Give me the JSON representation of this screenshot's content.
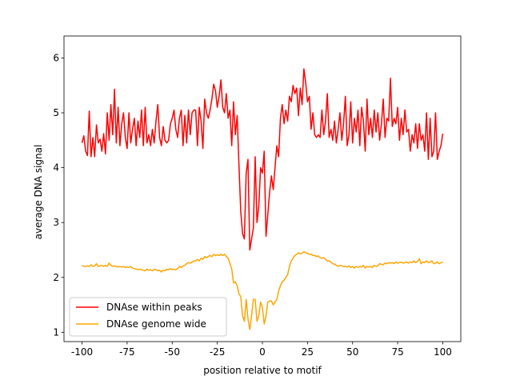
{
  "chart_data": {
    "type": "line",
    "xlabel": "position relative to motif",
    "ylabel": "average DNA signal",
    "x": [
      -100,
      -99,
      -98,
      -97,
      -96,
      -95,
      -94,
      -93,
      -92,
      -91,
      -90,
      -89,
      -88,
      -87,
      -86,
      -85,
      -84,
      -83,
      -82,
      -81,
      -80,
      -79,
      -78,
      -77,
      -76,
      -75,
      -74,
      -73,
      -72,
      -71,
      -70,
      -69,
      -68,
      -67,
      -66,
      -65,
      -64,
      -63,
      -62,
      -61,
      -60,
      -59,
      -58,
      -57,
      -56,
      -55,
      -54,
      -53,
      -52,
      -51,
      -50,
      -49,
      -48,
      -47,
      -46,
      -45,
      -44,
      -43,
      -42,
      -41,
      -40,
      -39,
      -38,
      -37,
      -36,
      -35,
      -34,
      -33,
      -32,
      -31,
      -30,
      -29,
      -28,
      -27,
      -26,
      -25,
      -24,
      -23,
      -22,
      -21,
      -20,
      -19,
      -18,
      -17,
      -16,
      -15,
      -14,
      -13,
      -12,
      -11,
      -10,
      -9,
      -8,
      -7,
      -6,
      -5,
      -4,
      -3,
      -2,
      -1,
      0,
      1,
      2,
      3,
      4,
      5,
      6,
      7,
      8,
      9,
      10,
      11,
      12,
      13,
      14,
      15,
      16,
      17,
      18,
      19,
      20,
      21,
      22,
      23,
      24,
      25,
      26,
      27,
      28,
      29,
      30,
      31,
      32,
      33,
      34,
      35,
      36,
      37,
      38,
      39,
      40,
      41,
      42,
      43,
      44,
      45,
      46,
      47,
      48,
      49,
      50,
      51,
      52,
      53,
      54,
      55,
      56,
      57,
      58,
      59,
      60,
      61,
      62,
      63,
      64,
      65,
      66,
      67,
      68,
      69,
      70,
      71,
      72,
      73,
      74,
      75,
      76,
      77,
      78,
      79,
      80,
      81,
      82,
      83,
      84,
      85,
      86,
      87,
      88,
      89,
      90,
      91,
      92,
      93,
      94,
      95,
      96,
      97,
      98,
      99,
      100
    ],
    "series": [
      {
        "name": "DNAse within peaks",
        "color": "#ff0000",
        "values": [
          4.45,
          4.58,
          4.3,
          4.22,
          5.03,
          4.2,
          4.55,
          4.2,
          4.78,
          4.45,
          4.52,
          4.3,
          4.62,
          4.25,
          5.0,
          4.5,
          5.15,
          4.6,
          5.43,
          4.45,
          5.1,
          4.4,
          4.8,
          5.0,
          4.55,
          4.35,
          5.0,
          4.45,
          4.7,
          4.9,
          4.4,
          4.85,
          4.55,
          5.05,
          4.4,
          5.1,
          4.45,
          4.6,
          4.4,
          4.7,
          4.45,
          4.85,
          5.15,
          4.55,
          4.4,
          4.75,
          4.5,
          4.45,
          4.5,
          4.8,
          4.9,
          5.05,
          4.7,
          4.55,
          4.9,
          5.05,
          4.4,
          4.95,
          4.45,
          5.05,
          4.6,
          5.0,
          5.05,
          5.05,
          4.4,
          5.1,
          4.85,
          4.35,
          5.25,
          5.0,
          4.9,
          5.05,
          5.25,
          5.52,
          5.4,
          5.1,
          5.3,
          5.6,
          5.1,
          5.0,
          5.35,
          4.9,
          5.05,
          4.4,
          5.2,
          4.6,
          4.95,
          4.05,
          3.2,
          2.8,
          2.7,
          3.9,
          4.15,
          2.5,
          2.7,
          2.9,
          4.2,
          3.0,
          3.3,
          4.0,
          3.9,
          4.3,
          2.75,
          3.15,
          3.55,
          3.85,
          3.6,
          4.0,
          4.4,
          4.2,
          4.9,
          5.15,
          4.8,
          5.05,
          4.85,
          5.3,
          5.2,
          5.5,
          5.35,
          5.45,
          4.95,
          5.45,
          5.15,
          5.8,
          5.55,
          5.2,
          5.3,
          4.7,
          5.0,
          4.6,
          4.55,
          4.6,
          4.55,
          5.05,
          4.6,
          4.85,
          5.35,
          4.55,
          4.7,
          4.5,
          4.85,
          4.45,
          4.7,
          5.0,
          4.5,
          4.8,
          5.3,
          4.4,
          4.6,
          5.2,
          4.45,
          4.9,
          4.65,
          5.05,
          4.4,
          5.1,
          4.85,
          4.3,
          5.25,
          4.6,
          4.9,
          4.55,
          5.05,
          4.65,
          5.0,
          4.5,
          4.8,
          5.25,
          4.55,
          4.9,
          4.85,
          5.63,
          4.75,
          4.9,
          4.8,
          5.1,
          4.5,
          4.9,
          4.6,
          5.05,
          4.65,
          4.7,
          4.3,
          4.6,
          4.45,
          4.8,
          4.35,
          4.8,
          4.5,
          4.6,
          4.3,
          5.0,
          4.15,
          4.9,
          4.2,
          4.3,
          5.0,
          4.15,
          4.3,
          4.4,
          4.62
        ]
      },
      {
        "name": "DNAse genome wide",
        "color": "#ffa500",
        "values": [
          2.22,
          2.2,
          2.2,
          2.21,
          2.2,
          2.23,
          2.2,
          2.21,
          2.25,
          2.2,
          2.21,
          2.22,
          2.2,
          2.22,
          2.2,
          2.26,
          2.22,
          2.2,
          2.21,
          2.2,
          2.19,
          2.2,
          2.19,
          2.2,
          2.18,
          2.19,
          2.18,
          2.2,
          2.17,
          2.16,
          2.15,
          2.14,
          2.15,
          2.14,
          2.13,
          2.12,
          2.15,
          2.13,
          2.14,
          2.12,
          2.15,
          2.14,
          2.12,
          2.13,
          2.1,
          2.13,
          2.12,
          2.15,
          2.14,
          2.16,
          2.14,
          2.15,
          2.14,
          2.16,
          2.2,
          2.18,
          2.21,
          2.22,
          2.25,
          2.27,
          2.26,
          2.28,
          2.3,
          2.3,
          2.33,
          2.3,
          2.35,
          2.33,
          2.38,
          2.36,
          2.38,
          2.4,
          2.38,
          2.42,
          2.4,
          2.41,
          2.4,
          2.42,
          2.4,
          2.42,
          2.38,
          2.35,
          2.25,
          2.15,
          1.9,
          1.92,
          1.85,
          1.7,
          1.65,
          1.3,
          1.2,
          1.6,
          1.25,
          1.05,
          1.3,
          1.6,
          1.6,
          1.2,
          1.3,
          1.55,
          1.45,
          1.15,
          1.3,
          1.55,
          1.57,
          1.57,
          1.5,
          1.55,
          1.6,
          1.75,
          1.85,
          1.92,
          1.95,
          2.0,
          2.05,
          2.2,
          2.3,
          2.35,
          2.4,
          2.42,
          2.45,
          2.43,
          2.44,
          2.47,
          2.45,
          2.44,
          2.42,
          2.42,
          2.4,
          2.4,
          2.38,
          2.39,
          2.36,
          2.35,
          2.36,
          2.33,
          2.3,
          2.3,
          2.28,
          2.25,
          2.24,
          2.22,
          2.2,
          2.22,
          2.21,
          2.2,
          2.2,
          2.19,
          2.21,
          2.18,
          2.2,
          2.17,
          2.2,
          2.18,
          2.2,
          2.19,
          2.22,
          2.17,
          2.2,
          2.19,
          2.2,
          2.18,
          2.22,
          2.2,
          2.21,
          2.25,
          2.24,
          2.23,
          2.26,
          2.25,
          2.27,
          2.26,
          2.27,
          2.25,
          2.28,
          2.26,
          2.27,
          2.28,
          2.26,
          2.27,
          2.28,
          2.26,
          2.28,
          2.27,
          2.3,
          2.27,
          2.29,
          2.34,
          2.25,
          2.28,
          2.27,
          2.3,
          2.27,
          2.28,
          2.3,
          2.25,
          2.26,
          2.28,
          2.25,
          2.27,
          2.28
        ]
      }
    ],
    "xlim": [
      -110,
      110
    ],
    "ylim": [
      0.83,
      6.21
    ],
    "xticks": [
      -100,
      -75,
      -50,
      -25,
      0,
      25,
      50,
      75,
      100
    ],
    "yticks": [
      1,
      2,
      3,
      4,
      5,
      6
    ],
    "legend": "lower left"
  }
}
